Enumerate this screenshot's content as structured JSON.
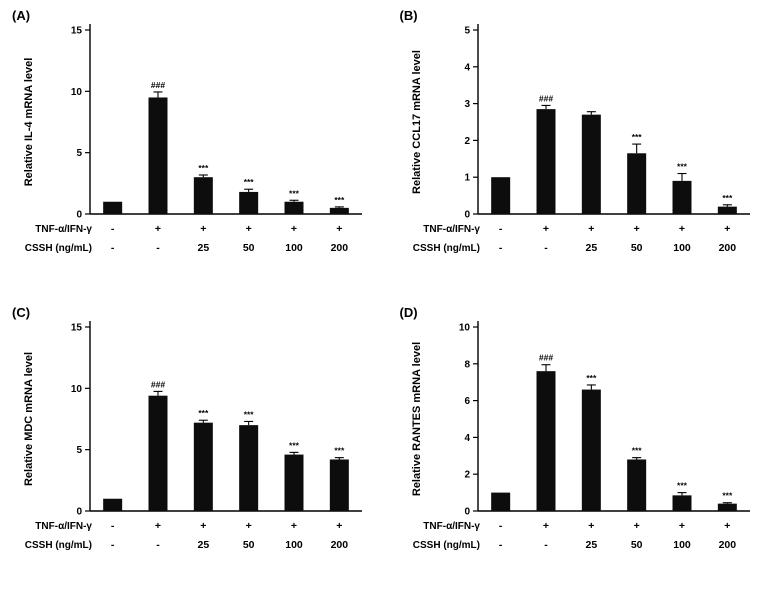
{
  "figure": {
    "bar_color": "#0d0d0d",
    "axis_color": "#000000",
    "background": "#ffffff"
  },
  "chart_data": [
    {
      "type": "bar",
      "panel": "(A)",
      "ylabel": "Relative IL-4 mRNA level",
      "ylim": [
        0,
        15
      ],
      "yticks": [
        0,
        5,
        10,
        15
      ],
      "values": [
        1.0,
        9.5,
        3.0,
        1.8,
        1.0,
        0.5
      ],
      "errors": [
        0,
        0.45,
        0.18,
        0.22,
        0.12,
        0.08
      ],
      "annotations": [
        "",
        "###",
        "***",
        "***",
        "***",
        "***"
      ],
      "x_rows": [
        {
          "label": "TNF-α/IFN-γ",
          "values": [
            "-",
            "+",
            "+",
            "+",
            "+",
            "+"
          ]
        },
        {
          "label": "CSSH (ng/mL)",
          "values": [
            "-",
            "-",
            "25",
            "50",
            "100",
            "200"
          ]
        }
      ],
      "legend": "none",
      "grid": "off"
    },
    {
      "type": "bar",
      "panel": "(B)",
      "ylabel": "Relative CCL17 mRNA level",
      "ylim": [
        0,
        5
      ],
      "yticks": [
        0,
        1,
        2,
        3,
        4,
        5
      ],
      "values": [
        1.0,
        2.85,
        2.7,
        1.65,
        0.9,
        0.2
      ],
      "errors": [
        0,
        0.1,
        0.08,
        0.25,
        0.2,
        0.05
      ],
      "annotations": [
        "",
        "###",
        "",
        "***",
        "***",
        "***"
      ],
      "x_rows": [
        {
          "label": "TNF-α/IFN-γ",
          "values": [
            "-",
            "+",
            "+",
            "+",
            "+",
            "+"
          ]
        },
        {
          "label": "CSSH (ng/mL)",
          "values": [
            "-",
            "-",
            "25",
            "50",
            "100",
            "200"
          ]
        }
      ],
      "legend": "none",
      "grid": "off"
    },
    {
      "type": "bar",
      "panel": "(C)",
      "ylabel": "Relative MDC mRNA level",
      "ylim": [
        0,
        15
      ],
      "yticks": [
        0,
        5,
        10,
        15
      ],
      "values": [
        1.0,
        9.4,
        7.2,
        7.0,
        4.6,
        4.2
      ],
      "errors": [
        0,
        0.35,
        0.2,
        0.3,
        0.18,
        0.15
      ],
      "annotations": [
        "",
        "###",
        "***",
        "***",
        "***",
        "***"
      ],
      "x_rows": [
        {
          "label": "TNF-α/IFN-γ",
          "values": [
            "-",
            "+",
            "+",
            "+",
            "+",
            "+"
          ]
        },
        {
          "label": "CSSH (ng/mL)",
          "values": [
            "-",
            "-",
            "25",
            "50",
            "100",
            "200"
          ]
        }
      ],
      "legend": "none",
      "grid": "off"
    },
    {
      "type": "bar",
      "panel": "(D)",
      "ylabel": "Relative RANTES mRNA level",
      "ylim": [
        0,
        10
      ],
      "yticks": [
        0,
        2,
        4,
        6,
        8,
        10
      ],
      "values": [
        1.0,
        7.6,
        6.6,
        2.8,
        0.85,
        0.4
      ],
      "errors": [
        0,
        0.35,
        0.25,
        0.1,
        0.15,
        0.05
      ],
      "annotations": [
        "",
        "###",
        "***",
        "***",
        "***",
        "***"
      ],
      "x_rows": [
        {
          "label": "TNF-α/IFN-γ",
          "values": [
            "-",
            "+",
            "+",
            "+",
            "+",
            "+"
          ]
        },
        {
          "label": "CSSH (ng/mL)",
          "values": [
            "-",
            "-",
            "25",
            "50",
            "100",
            "200"
          ]
        }
      ],
      "legend": "none",
      "grid": "off"
    }
  ]
}
